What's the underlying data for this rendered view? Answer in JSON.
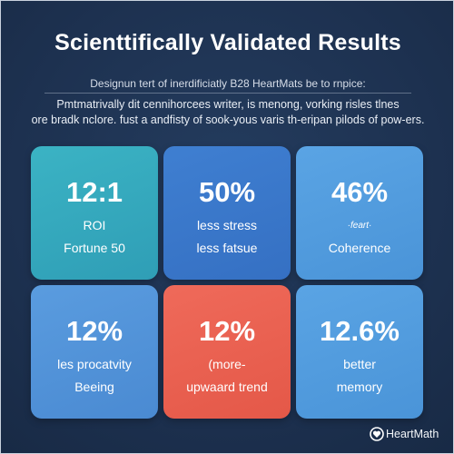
{
  "header": {
    "title": "Scienttifically Validated Results",
    "subtitle": "Designun tert of inerdificiatly B28 HeartMats be to rnpice:",
    "description_line1": "Pmtmatrivally dit cennihorcees writer, is menong, vorking risles tlnes",
    "description_line2": "ore bradk nclore. fust a andfisty of sook-yous varis th-eripan pilods of pow-ers."
  },
  "stats": [
    {
      "value": "12:1",
      "line1": "ROI",
      "line2": "Fortune 50",
      "color": "#36a9bd"
    },
    {
      "value": "50%",
      "line1": "less stress",
      "line2": "less fatsue",
      "color": "#3a77ca"
    },
    {
      "value": "46%",
      "line1": "·feart·",
      "line2": "Coherence",
      "color": "#529cde"
    },
    {
      "value": "12%",
      "line1": "les procatvity",
      "line2": "Beeing",
      "color": "#5293d8"
    },
    {
      "value": "12%",
      "line1": "(more-",
      "line2": "upwaard trend",
      "color": "#ea6151"
    },
    {
      "value": "12.6%",
      "line1": "better",
      "line2": "memory",
      "color": "#529cde"
    }
  ],
  "brand": {
    "name": "HeartMath",
    "icon": "heartmath-logo-icon"
  },
  "colors": {
    "background": "#1f3352",
    "text": "#ffffff"
  }
}
